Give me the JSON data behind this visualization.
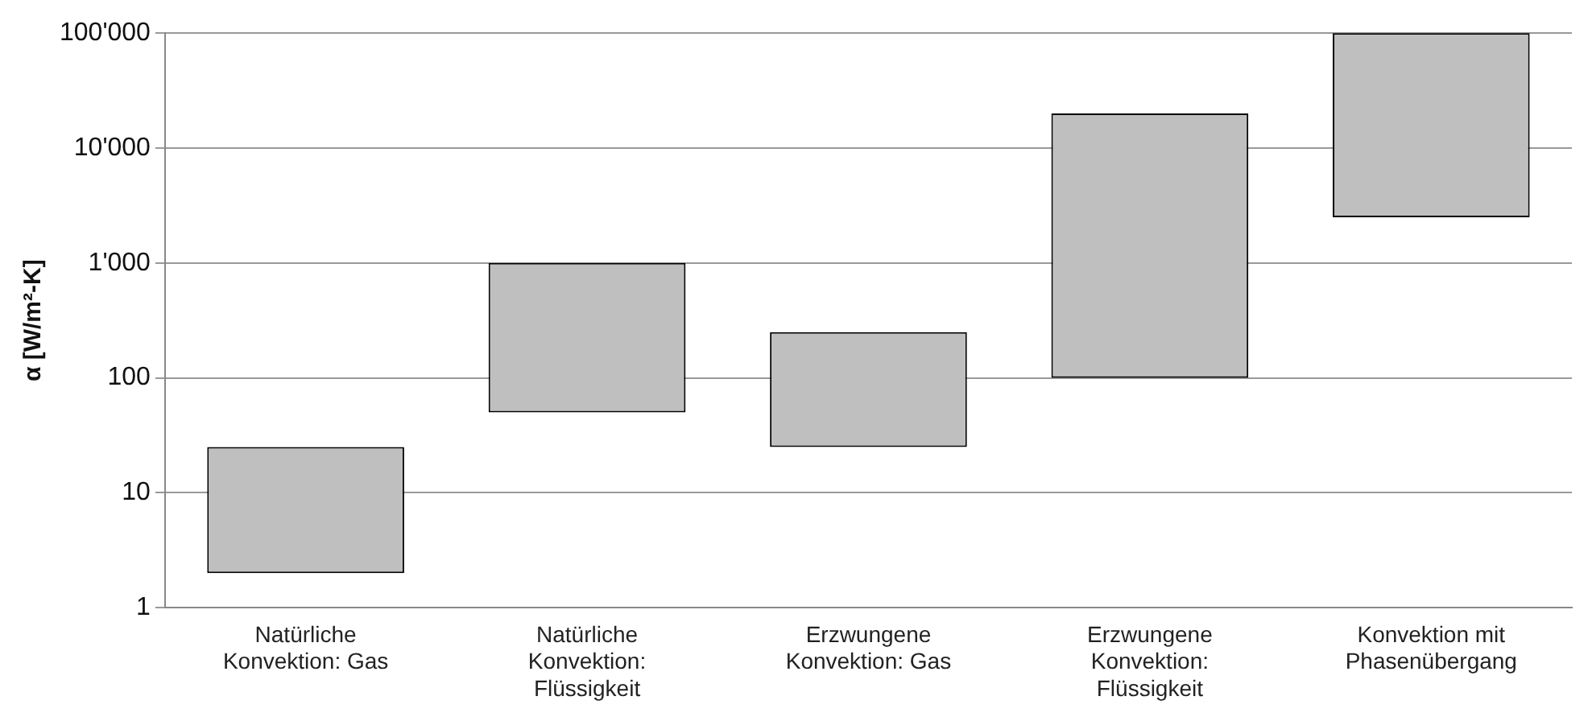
{
  "chart_data": {
    "type": "bar",
    "ylabel": "α [W/m²-K]",
    "categories": [
      "Natürliche Konvektion: Gas",
      "Natürliche Konvektion: Flüssigkeit",
      "Erzwungene Konvektion: Gas",
      "Erzwungene Konvektion: Flüssigkeit",
      "Konvektion mit Phasenübergang"
    ],
    "base": [
      2,
      50,
      25,
      100,
      2500
    ],
    "values": [
      23,
      950,
      225,
      19900,
      97500
    ],
    "color": "#bfbfbf",
    "log": true,
    "ylim": [
      1,
      100000
    ],
    "yticks": [
      1,
      10,
      100,
      {
        "value": 1000,
        "label": "1'000"
      },
      {
        "value": 10000,
        "label": "10'000"
      },
      {
        "value": 100000,
        "label": "100'000"
      }
    ],
    "grid": "y",
    "legend": false
  }
}
